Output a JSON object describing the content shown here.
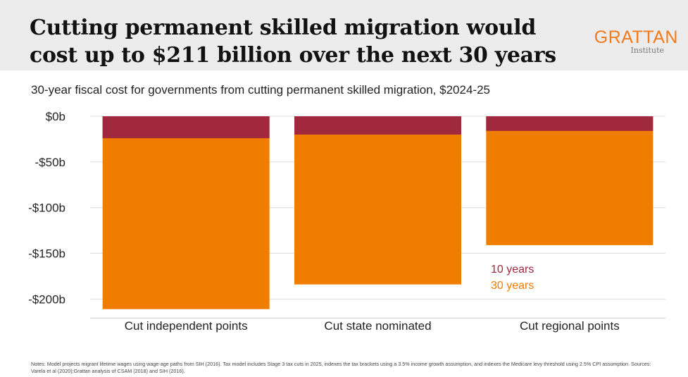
{
  "header": {
    "title": "Cutting permanent skilled migration would cost up to $211 billion over the next 30 years",
    "logo": {
      "name": "GRATTAN",
      "sub": "Institute"
    }
  },
  "subtitle": "30-year fiscal cost for governments from cutting permanent skilled migration, $2024-25",
  "chart_data": {
    "type": "bar",
    "stacked_overlay": true,
    "categories": [
      "Cut independent points",
      "Cut state nominated",
      "Cut regional points"
    ],
    "series": [
      {
        "name": "30 years",
        "color": "#f07c00",
        "values": [
          -211,
          -184,
          -141
        ]
      },
      {
        "name": "10 years",
        "color": "#a02940",
        "values": [
          -24,
          -20,
          -16
        ]
      }
    ],
    "ylim": [
      -220,
      0
    ],
    "yticks": [
      0,
      -50,
      -100,
      -150,
      -200
    ],
    "ytick_labels": [
      "$0b",
      "-$50b",
      "-$100b",
      "-$150b",
      "-$200b"
    ],
    "legend": [
      {
        "label": "10 years",
        "color": "#a02940"
      },
      {
        "label": "30 years",
        "color": "#f07c00"
      }
    ],
    "grid": true
  },
  "notes": "Notes: Model projects migrant lifetime wages using wage-age paths from SIH (2016). Tax model includes Stage 3 tax cuts in 2025, indexes the tax brackets using a  3.5% income growth assumption, and indexes the Medicare levy threshold using 2.5% CPI assumption. Sources: Varela et al (2020);Grattan analysis of CSAM (2018) and SIH (2016)."
}
